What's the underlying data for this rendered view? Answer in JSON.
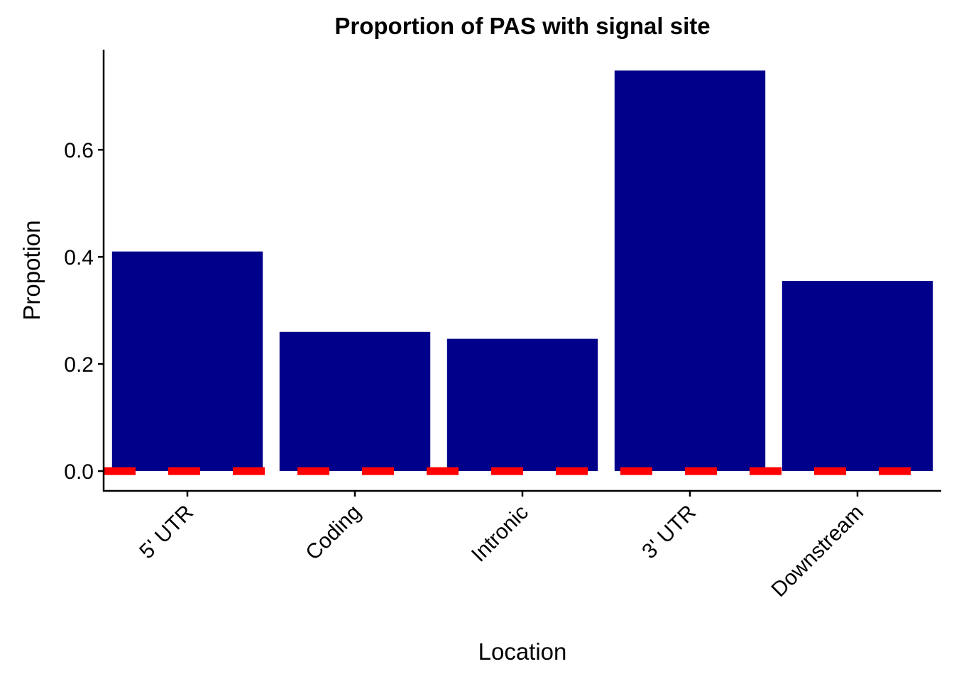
{
  "chart_data": {
    "type": "bar",
    "title": "Proportion of PAS with signal site",
    "xlabel": "Location",
    "ylabel": "Propotion",
    "categories": [
      "5' UTR",
      "Coding",
      "Intronic",
      "3' UTR",
      "Downstream"
    ],
    "values": [
      0.41,
      0.26,
      0.247,
      0.748,
      0.355
    ],
    "ylim": [
      -0.037,
      0.787
    ],
    "yticks": [
      0.0,
      0.2,
      0.4,
      0.6
    ],
    "ytick_labels": [
      "0.0",
      "0.2",
      "0.4",
      "0.6"
    ],
    "reference_line": {
      "y": 0.0,
      "style": "dashed",
      "color": "#FF0000"
    },
    "bar_color": "#00008B",
    "grid": false,
    "legend": "none"
  }
}
